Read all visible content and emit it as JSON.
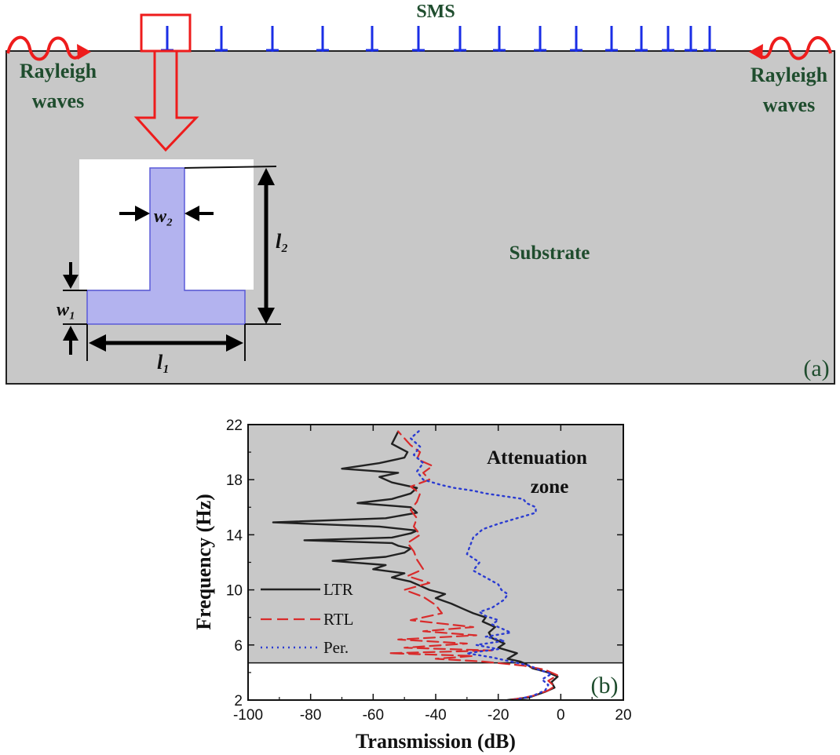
{
  "panel_a": {
    "title": "SMS",
    "left_wave_line1": "Rayleigh",
    "left_wave_line2": "waves",
    "right_wave_line1": "Rayleigh",
    "right_wave_line2": "waves",
    "substrate_label": "Substrate",
    "panel_label": "(a)",
    "dim_w2": "w₂",
    "dim_l2": "l₂",
    "dim_w1": "w₁",
    "dim_l1": "l₁",
    "colors": {
      "substrate": "#c8c8c8",
      "resonator_fill": "#b3b3ef",
      "resonator_edge": "#5a5ad8",
      "spike": "#1a2ee6",
      "highlight": "#ee1c1c",
      "label_text": "#1f4d2e"
    },
    "spike_count": 16
  },
  "panel_b": {
    "panel_label": "(b)",
    "zone_line1": "Attenuation",
    "zone_line2": "zone",
    "colors": {
      "zone": "#c8c8c8",
      "LTR": "#222222",
      "RTL": "#d92b2b",
      "Per": "#2b3cd1"
    }
  },
  "chart_data": {
    "type": "line",
    "xlabel": "Transmission (dB)",
    "ylabel": "Frequency (Hz)",
    "xlim": [
      -100,
      20
    ],
    "ylim": [
      2,
      22
    ],
    "xticks": [
      "-100",
      "-80",
      "-60",
      "-40",
      "-20",
      "0",
      "20"
    ],
    "yticks": [
      "2",
      "6",
      "10",
      "14",
      "18",
      "22"
    ],
    "attenuation_zone_y": [
      4.7,
      22
    ],
    "legend": [
      "LTR",
      "RTL",
      "Per."
    ],
    "legend_position": "bottom-left",
    "series": [
      {
        "name": "LTR",
        "style": "solid",
        "x": [
          -17,
          -10,
          -5,
          -2,
          -3,
          -1,
          -4,
          -9,
          -11,
          -13,
          -17,
          -14,
          -20,
          -18,
          -22,
          -23,
          -21,
          -25,
          -24,
          -28,
          -31,
          -35,
          -40,
          -37,
          -42,
          -45,
          -48,
          -54,
          -50,
          -60,
          -56,
          -73,
          -56,
          -50,
          -48,
          -52,
          -54,
          -82,
          -54,
          -48,
          -46,
          -58,
          -92,
          -56,
          -46,
          -48,
          -65,
          -54,
          -48,
          -46,
          -54,
          -58,
          -52,
          -70,
          -58,
          -50,
          -49,
          -54,
          -52
        ],
        "y": [
          2.0,
          2.2,
          2.6,
          2.9,
          3.3,
          3.7,
          4.0,
          4.3,
          4.6,
          4.8,
          5.0,
          5.4,
          5.8,
          6.1,
          6.5,
          6.9,
          7.3,
          7.7,
          8.0,
          8.3,
          8.6,
          9.0,
          9.4,
          9.7,
          10.0,
          10.3,
          10.6,
          10.9,
          11.2,
          11.5,
          11.8,
          12.1,
          12.4,
          12.7,
          13.0,
          13.2,
          13.4,
          13.6,
          13.8,
          14.1,
          14.3,
          14.6,
          14.9,
          15.2,
          15.6,
          16.0,
          16.3,
          16.6,
          17.0,
          17.4,
          17.8,
          18.2,
          18.5,
          18.8,
          19.2,
          19.6,
          20.0,
          20.6,
          21.5
        ]
      },
      {
        "name": "RTL",
        "style": "dashed",
        "x": [
          -16,
          -9,
          -4,
          -2,
          -4,
          -1,
          -5,
          -12,
          -25,
          -40,
          -28,
          -55,
          -22,
          -50,
          -30,
          -52,
          -27,
          -44,
          -28,
          -48,
          -38,
          -40,
          -44,
          -50,
          -42,
          -49,
          -44,
          -46,
          -47,
          -49,
          -45,
          -47,
          -46,
          -48,
          -46,
          -45,
          -48,
          -42,
          -44,
          -41,
          -46,
          -45,
          -48,
          -50,
          -52
        ],
        "y": [
          2.0,
          2.3,
          2.7,
          3.0,
          3.4,
          3.8,
          4.2,
          4.5,
          4.8,
          5.0,
          5.2,
          5.4,
          5.6,
          5.8,
          6.1,
          6.4,
          6.7,
          7.0,
          7.3,
          7.8,
          8.3,
          8.9,
          9.5,
          10.0,
          10.5,
          11.0,
          11.5,
          12.2,
          12.8,
          13.4,
          14.0,
          14.6,
          15.2,
          15.8,
          16.4,
          17.0,
          17.5,
          18.0,
          18.5,
          19.0,
          19.5,
          20.0,
          20.5,
          21.0,
          21.5
        ]
      },
      {
        "name": "Per.",
        "style": "dotted",
        "x": [
          -15,
          -9,
          -5,
          -4,
          -6,
          -3,
          -7,
          -10,
          -16,
          -22,
          -30,
          -20,
          -27,
          -18,
          -24,
          -16,
          -19,
          -22,
          -20,
          -24,
          -26,
          -22,
          -20,
          -18,
          -17,
          -19,
          -20,
          -24,
          -28,
          -26,
          -30,
          -29,
          -28,
          -25,
          -20,
          -14,
          -8,
          -8,
          -11,
          -12,
          -18,
          -24,
          -28,
          -34,
          -38,
          -44,
          -46,
          -44,
          -47,
          -45,
          -48,
          -45
        ],
        "y": [
          2.0,
          2.3,
          2.7,
          3.1,
          3.5,
          3.9,
          4.2,
          4.5,
          4.8,
          5.1,
          5.4,
          5.7,
          6.0,
          6.3,
          6.6,
          6.9,
          7.2,
          7.5,
          7.8,
          8.1,
          8.4,
          8.7,
          9.0,
          9.3,
          9.7,
          10.0,
          10.4,
          10.9,
          11.4,
          12.0,
          12.6,
          13.2,
          13.8,
          14.4,
          14.8,
          15.2,
          15.6,
          16.0,
          16.3,
          16.6,
          16.8,
          17.0,
          17.2,
          17.4,
          17.6,
          18.0,
          18.6,
          19.2,
          19.8,
          20.4,
          21.0,
          21.6
        ]
      }
    ]
  }
}
